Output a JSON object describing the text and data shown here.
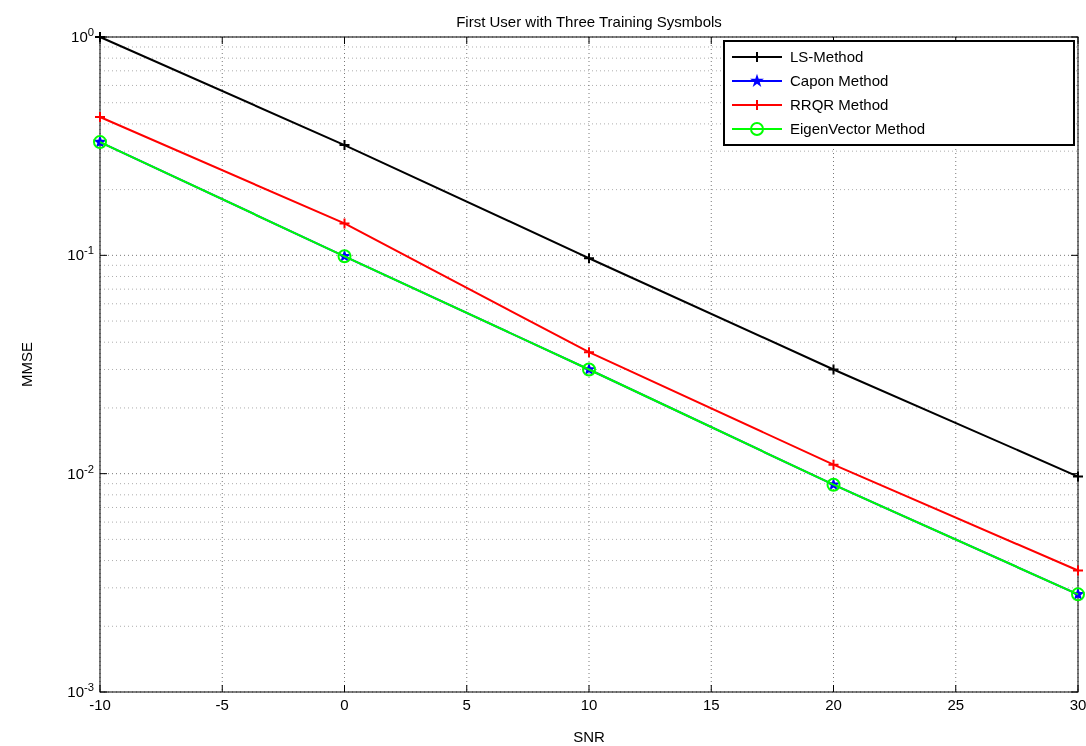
{
  "chart_data": {
    "type": "line",
    "title": "First User with Three Training Sysmbols",
    "xlabel": "SNR",
    "ylabel": "MMSE",
    "log": "y",
    "grid": true,
    "legend": "top right",
    "x": [
      -10,
      0,
      10,
      20,
      30
    ],
    "xlim": [
      -10,
      30
    ],
    "xticks": [
      -10,
      -5,
      0,
      5,
      10,
      15,
      20,
      25,
      30
    ],
    "ylim": [
      0.001,
      1
    ],
    "yticks": [
      {
        "value": 0.001,
        "label": "10$^{-3}$"
      },
      {
        "value": 0.01,
        "label": "10$^{-2}$"
      },
      {
        "value": 0.1,
        "label": "10$^{-1}$"
      },
      {
        "value": 1,
        "label": "10$^{0}$"
      }
    ],
    "series": [
      {
        "name": "LS-Method",
        "color": "#000000",
        "marker": "cross",
        "values": [
          1,
          0.32,
          0.097,
          0.03,
          0.0097
        ]
      },
      {
        "name": "Capon Method",
        "color": "#0000ff",
        "marker": "star",
        "values": [
          0.33,
          0.099,
          0.03,
          0.0089,
          0.0028
        ]
      },
      {
        "name": "RRQR Method",
        "color": "#ff0000",
        "marker": "cross",
        "values": [
          0.43,
          0.14,
          0.036,
          0.011,
          0.0036
        ]
      },
      {
        "name": "EigenVector Method",
        "color": "#00ff00",
        "marker": "circle",
        "values": [
          0.33,
          0.099,
          0.03,
          0.0089,
          0.0028
        ]
      }
    ]
  }
}
